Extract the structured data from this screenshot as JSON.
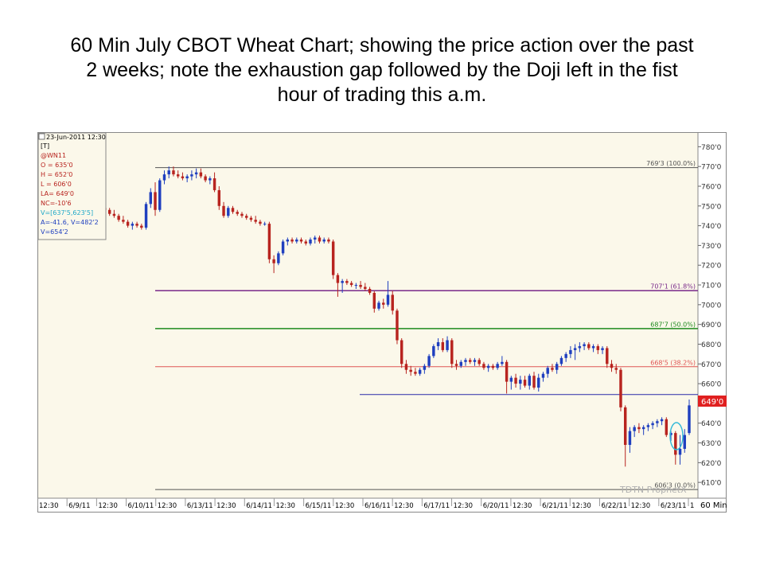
{
  "slide": {
    "title_lines": [
      "60 Min July CBOT Wheat Chart; showing the price action over the past",
      "2 weeks; note the exhaustion gap followed by the Doji left in the fist",
      "hour of trading this a.m."
    ]
  },
  "colors": {
    "plot_bg": "#fbf8ea",
    "axis_bg": "#ffffff",
    "up_candle": "#1f3fbf",
    "down_candle": "#b8241f",
    "fib_100": "#555555",
    "fib_618": "#7a2a8a",
    "fib_50": "#1f8a1f",
    "fib_382": "#e05555",
    "support": "#2a2aa8",
    "fib_0": "#555555",
    "last_price_bg": "#e02020",
    "doji_circle": "#30b8d8"
  },
  "chart_data": {
    "type": "candlestick",
    "symbol": "@WN11",
    "timeframe": "60 Min",
    "watermark": "TDTN ProphetX",
    "info_box": {
      "date": "23-Jun-2011 12:30",
      "bracket": "[T]",
      "symbol": "@WN11",
      "open": "O = 635'0",
      "high": "H = 652'0",
      "low": "L = 606'0",
      "last": "LA= 649'0",
      "net_change": "NC=-10'6",
      "volume_line": "V=[637'5,623'5]",
      "avg_line": "A=-41.6, V=482'2",
      "v_line": "V=654'2"
    },
    "y_axis": {
      "min": 602,
      "max": 787,
      "ticks": [
        "780'0",
        "770'0",
        "760'0",
        "750'0",
        "740'0",
        "730'0",
        "720'0",
        "710'0",
        "700'0",
        "690'0",
        "680'0",
        "670'0",
        "660'0",
        "650'0",
        "640'0",
        "630'0",
        "620'0",
        "610'0"
      ],
      "tick_values": [
        780,
        770,
        760,
        750,
        740,
        730,
        720,
        710,
        700,
        690,
        680,
        670,
        660,
        650,
        640,
        630,
        620,
        610
      ]
    },
    "last_price": {
      "label": "649'0",
      "value": 649
    },
    "x_axis": {
      "labels": [
        "12:30",
        "6/9/11",
        "12:30",
        "6/10/11",
        "12:30",
        "6/13/11",
        "12:30",
        "6/14/11",
        "12:30",
        "6/15/11",
        "12:30",
        "6/16/11",
        "12:30",
        "6/17/11",
        "12:30",
        "6/20/11",
        "12:30",
        "6/21/11",
        "12:30",
        "6/22/11",
        "12:30",
        "6/23/11",
        "1"
      ],
      "unit_label": "60 Min"
    },
    "fib_levels": [
      {
        "label": "769'3 (100.0%)",
        "value": 769.4,
        "color": "#555555"
      },
      {
        "label": "707'1 (61.8%)",
        "value": 707.1,
        "color": "#7a2a8a"
      },
      {
        "label": "687'7 (50.0%)",
        "value": 687.9,
        "color": "#1f8a1f"
      },
      {
        "label": "668'5 (38.2%)",
        "value": 668.6,
        "color": "#e05555"
      },
      {
        "label": "606'3 (0.0%)",
        "value": 606.4,
        "color": "#555555"
      }
    ],
    "support_line": {
      "value": 654.5
    },
    "candles": [
      [
        748,
        749,
        746,
        747
      ],
      [
        747,
        750,
        745,
        749
      ],
      [
        749,
        751,
        747,
        748
      ],
      [
        748,
        749,
        746,
        749
      ],
      [
        749,
        750,
        748,
        748
      ],
      [
        748,
        749,
        745,
        746
      ],
      [
        746,
        748,
        744,
        745
      ],
      [
        745,
        746,
        742,
        743
      ],
      [
        743,
        745,
        741,
        742
      ],
      [
        742,
        743,
        739,
        740
      ],
      [
        740,
        742,
        738,
        741
      ],
      [
        741,
        742,
        739,
        740
      ],
      [
        740,
        741,
        738,
        739
      ],
      [
        739,
        752,
        738,
        751
      ],
      [
        751,
        759,
        749,
        757
      ],
      [
        757,
        762,
        745,
        748
      ],
      [
        748,
        764,
        747,
        763
      ],
      [
        763,
        768,
        761,
        766
      ],
      [
        766,
        770,
        764,
        768
      ],
      [
        768,
        770,
        765,
        766
      ],
      [
        766,
        768,
        764,
        765
      ],
      [
        765,
        767,
        763,
        764
      ],
      [
        764,
        766,
        762,
        765
      ],
      [
        765,
        768,
        763,
        766
      ],
      [
        766,
        769,
        764,
        767
      ],
      [
        767,
        769,
        764,
        765
      ],
      [
        765,
        766,
        762,
        763
      ],
      [
        763,
        765,
        761,
        764
      ],
      [
        764,
        767,
        757,
        758
      ],
      [
        758,
        760,
        748,
        750
      ],
      [
        750,
        752,
        744,
        745
      ],
      [
        745,
        750,
        744,
        749
      ],
      [
        749,
        750,
        746,
        747
      ],
      [
        747,
        748,
        745,
        746
      ],
      [
        746,
        747,
        744,
        745
      ],
      [
        745,
        746,
        743,
        744
      ],
      [
        744,
        745,
        742,
        743
      ],
      [
        743,
        745,
        741,
        742
      ],
      [
        742,
        743,
        740,
        741
      ],
      [
        741,
        742,
        740,
        741
      ],
      [
        741,
        742,
        721,
        723
      ],
      [
        723,
        725,
        716,
        721
      ],
      [
        721,
        727,
        720,
        726
      ],
      [
        726,
        733,
        725,
        732
      ],
      [
        732,
        734,
        730,
        733
      ],
      [
        733,
        734,
        731,
        732
      ],
      [
        732,
        734,
        731,
        733
      ],
      [
        733,
        734,
        731,
        732
      ],
      [
        732,
        733,
        730,
        731
      ],
      [
        731,
        734,
        730,
        733
      ],
      [
        733,
        735,
        731,
        734
      ],
      [
        734,
        735,
        731,
        732
      ],
      [
        732,
        734,
        731,
        733
      ],
      [
        733,
        734,
        731,
        732
      ],
      [
        732,
        733,
        713,
        715
      ],
      [
        715,
        716,
        704,
        711
      ],
      [
        711,
        713,
        706,
        712
      ],
      [
        712,
        713,
        710,
        711
      ],
      [
        711,
        712,
        709,
        710
      ],
      [
        710,
        711,
        708,
        710
      ],
      [
        710,
        712,
        708,
        709
      ],
      [
        709,
        711,
        707,
        708
      ],
      [
        708,
        709,
        705,
        706
      ],
      [
        706,
        707,
        696,
        698
      ],
      [
        698,
        702,
        697,
        701
      ],
      [
        701,
        703,
        698,
        700
      ],
      [
        700,
        712,
        699,
        705
      ],
      [
        705,
        707,
        695,
        697
      ],
      [
        697,
        698,
        680,
        682
      ],
      [
        682,
        683,
        668,
        670
      ],
      [
        670,
        672,
        665,
        667
      ],
      [
        667,
        669,
        664,
        666
      ],
      [
        666,
        668,
        664,
        665
      ],
      [
        665,
        668,
        664,
        667
      ],
      [
        667,
        670,
        665,
        669
      ],
      [
        669,
        675,
        668,
        674
      ],
      [
        674,
        680,
        673,
        679
      ],
      [
        679,
        683,
        677,
        681
      ],
      [
        681,
        683,
        676,
        677
      ],
      [
        677,
        684,
        676,
        682
      ],
      [
        682,
        683,
        668,
        670
      ],
      [
        670,
        672,
        667,
        669
      ],
      [
        669,
        672,
        668,
        671
      ],
      [
        671,
        673,
        669,
        672
      ],
      [
        672,
        673,
        670,
        671
      ],
      [
        671,
        673,
        669,
        672
      ],
      [
        672,
        673,
        669,
        670
      ],
      [
        670,
        671,
        667,
        668
      ],
      [
        668,
        670,
        666,
        669
      ],
      [
        669,
        670,
        667,
        668
      ],
      [
        668,
        671,
        667,
        670
      ],
      [
        670,
        674,
        669,
        671
      ],
      [
        671,
        672,
        655,
        661
      ],
      [
        661,
        664,
        657,
        663
      ],
      [
        663,
        665,
        658,
        660
      ],
      [
        660,
        664,
        657,
        662
      ],
      [
        662,
        664,
        658,
        659
      ],
      [
        659,
        665,
        657,
        664
      ],
      [
        664,
        666,
        657,
        658
      ],
      [
        658,
        665,
        656,
        663
      ],
      [
        663,
        666,
        661,
        665
      ],
      [
        665,
        669,
        663,
        668
      ],
      [
        668,
        670,
        666,
        667
      ],
      [
        667,
        671,
        665,
        670
      ],
      [
        670,
        674,
        669,
        673
      ],
      [
        673,
        676,
        671,
        675
      ],
      [
        675,
        679,
        673,
        677
      ],
      [
        677,
        680,
        672,
        678
      ],
      [
        678,
        681,
        676,
        679
      ],
      [
        679,
        681,
        677,
        680
      ],
      [
        680,
        681,
        677,
        678
      ],
      [
        678,
        680,
        676,
        679
      ],
      [
        679,
        680,
        675,
        677
      ],
      [
        677,
        679,
        675,
        678
      ],
      [
        678,
        679,
        668,
        670
      ],
      [
        670,
        672,
        666,
        668
      ],
      [
        668,
        670,
        665,
        667
      ],
      [
        667,
        668,
        646,
        648
      ],
      [
        648,
        649,
        618,
        629
      ],
      [
        629,
        638,
        625,
        636
      ],
      [
        636,
        639,
        633,
        638
      ],
      [
        638,
        640,
        635,
        637
      ],
      [
        637,
        639,
        634,
        638
      ],
      [
        638,
        640,
        636,
        639
      ],
      [
        639,
        641,
        637,
        640
      ],
      [
        640,
        642,
        638,
        641
      ],
      [
        641,
        643,
        639,
        642
      ],
      [
        642,
        643,
        633,
        634
      ],
      [
        634,
        636,
        631,
        635
      ],
      [
        635,
        636,
        619,
        624
      ],
      [
        624,
        634,
        619,
        627
      ],
      [
        627,
        637,
        625,
        634
      ],
      [
        635,
        652,
        634,
        649
      ]
    ]
  }
}
